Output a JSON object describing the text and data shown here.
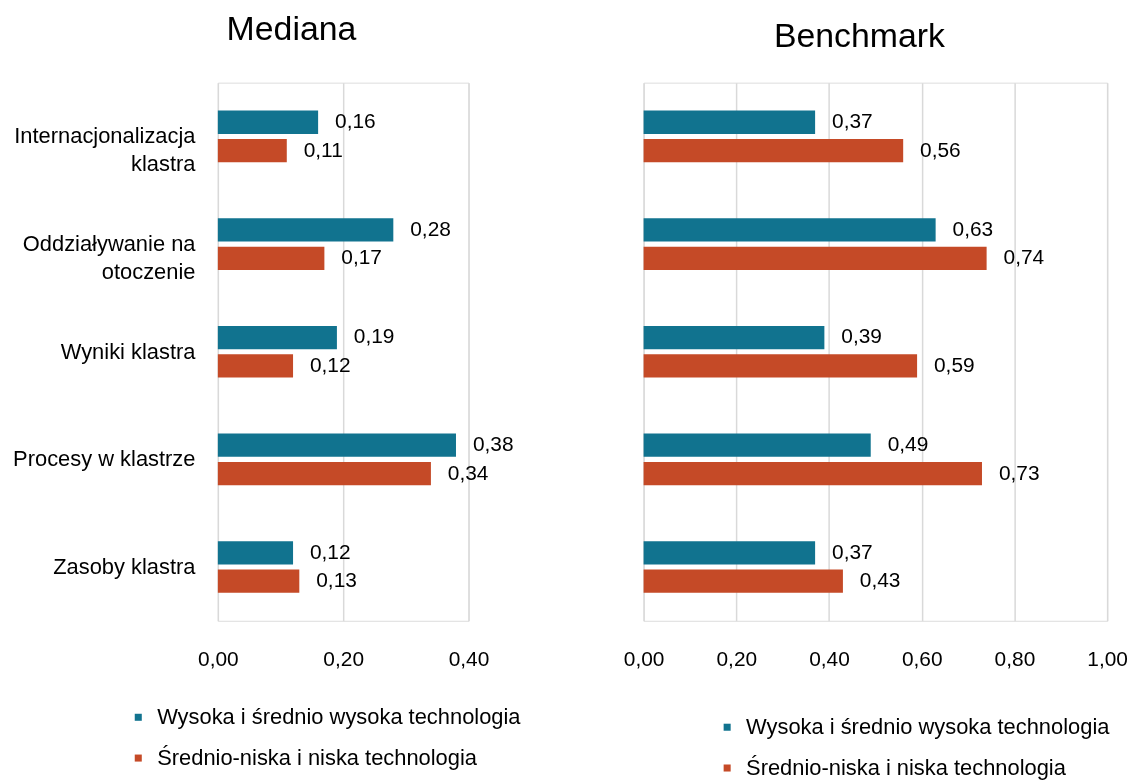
{
  "chart_data": [
    {
      "type": "bar",
      "orientation": "horizontal",
      "title": "Mediana",
      "categories": [
        "Internacjonalizacja klastra",
        "Oddziaływanie na otoczenie",
        "Wyniki klastra",
        "Procesy w klastrze",
        "Zasoby klastra"
      ],
      "series": [
        {
          "name": "Wysoka i średnio wysoka technologia",
          "color": "#11738f",
          "values": [
            0.16,
            0.28,
            0.19,
            0.38,
            0.12
          ],
          "value_labels": [
            "0,16",
            "0,28",
            "0,19",
            "0,38",
            "0,12"
          ]
        },
        {
          "name": "Średnio-niska i niska technologia",
          "color": "#c54a27",
          "values": [
            0.11,
            0.17,
            0.12,
            0.34,
            0.13
          ],
          "value_labels": [
            "0,11",
            "0,17",
            "0,12",
            "0,34",
            "0,13"
          ]
        }
      ],
      "xlim": [
        0,
        0.4
      ],
      "xticks": [
        {
          "value": 0,
          "label": "0,00"
        },
        {
          "value": 0.2,
          "label": "0,20"
        },
        {
          "value": 0.4,
          "label": "0,40"
        }
      ],
      "grid": "x",
      "legend": "bottom"
    },
    {
      "type": "bar",
      "orientation": "horizontal",
      "title": "Benchmark",
      "categories": [
        "Internacjonalizacja klastra",
        "Oddziaływanie na otoczenie",
        "Wyniki klastra",
        "Procesy w klastrze",
        "Zasoby klastra"
      ],
      "series": [
        {
          "name": "Wysoka i średnio wysoka technologia",
          "color": "#11738f",
          "values": [
            0.37,
            0.63,
            0.39,
            0.49,
            0.37
          ],
          "value_labels": [
            "0,37",
            "0,63",
            "0,39",
            "0,49",
            "0,37"
          ]
        },
        {
          "name": "Średnio-niska i niska technologia",
          "color": "#c54a27",
          "values": [
            0.56,
            0.74,
            0.59,
            0.73,
            0.43
          ],
          "value_labels": [
            "0,56",
            "0,74",
            "0,59",
            "0,73",
            "0,43"
          ]
        }
      ],
      "xlim": [
        0,
        1
      ],
      "xticks": [
        {
          "value": 0,
          "label": "0,00"
        },
        {
          "value": 0.2,
          "label": "0,20"
        },
        {
          "value": 0.4,
          "label": "0,40"
        },
        {
          "value": 0.6,
          "label": "0,60"
        },
        {
          "value": 0.8,
          "label": "0,80"
        },
        {
          "value": 1,
          "label": "1,00"
        }
      ],
      "grid": "x",
      "legend": "bottom",
      "tick_labels": "x"
    }
  ]
}
